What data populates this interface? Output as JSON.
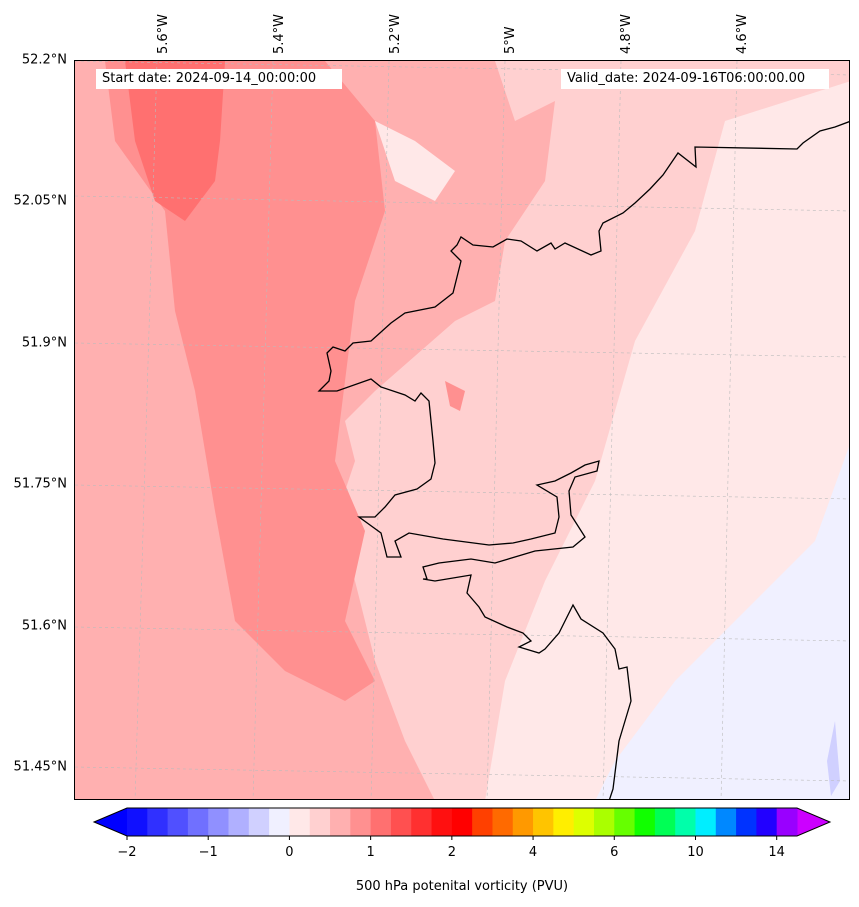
{
  "header": {
    "start_date": "Start date: 2024-09-14_00:00:00",
    "valid_date": "Valid_date: 2024-09-16T06:00:00.00"
  },
  "chart_data": {
    "type": "heatmap",
    "title": "",
    "variable": "500 hPa potenital vorticity (PVU)",
    "lon_ticks": [
      "5.6°W",
      "5.4°W",
      "5.2°W",
      "5°W",
      "4.8°W",
      "4.6°W"
    ],
    "lat_ticks": [
      "52.2°N",
      "52.05°N",
      "51.9°N",
      "51.75°N",
      "51.6°N",
      "51.45°N"
    ],
    "lon_range": [
      -5.7,
      -4.45
    ],
    "lat_range": [
      51.42,
      52.2
    ],
    "colorbar": {
      "label": "500 hPa potenital vorticity (PVU)",
      "ticks": [
        "−2",
        "−1",
        "0",
        "1",
        "2",
        "4",
        "6",
        "10",
        "14"
      ],
      "extend": "both",
      "under_color": "#0000ff",
      "over_color": "#cc00ff",
      "colors": [
        "#1010ff",
        "#3030ff",
        "#5050ff",
        "#7070ff",
        "#9090ff",
        "#b0b0ff",
        "#d0d0ff",
        "#f0f0ff",
        "#ffe8e8",
        "#ffd0d0",
        "#ffb0b0",
        "#ff9090",
        "#ff7070",
        "#ff5050",
        "#ff3030",
        "#ff1010",
        "#ff0000",
        "#ff4000",
        "#ff6a00",
        "#ff9900",
        "#ffc400",
        "#ffee00",
        "#ddff00",
        "#aaff00",
        "#66ff00",
        "#11ff00",
        "#00ff55",
        "#00ffaa",
        "#00eeff",
        "#0088ff",
        "#0033ff",
        "#2200ff",
        "#9900ff"
      ]
    },
    "field_summary_pvu": {
      "west_band": 1.0,
      "center": 0.5,
      "east": 0.2,
      "southeast": -0.1
    }
  }
}
